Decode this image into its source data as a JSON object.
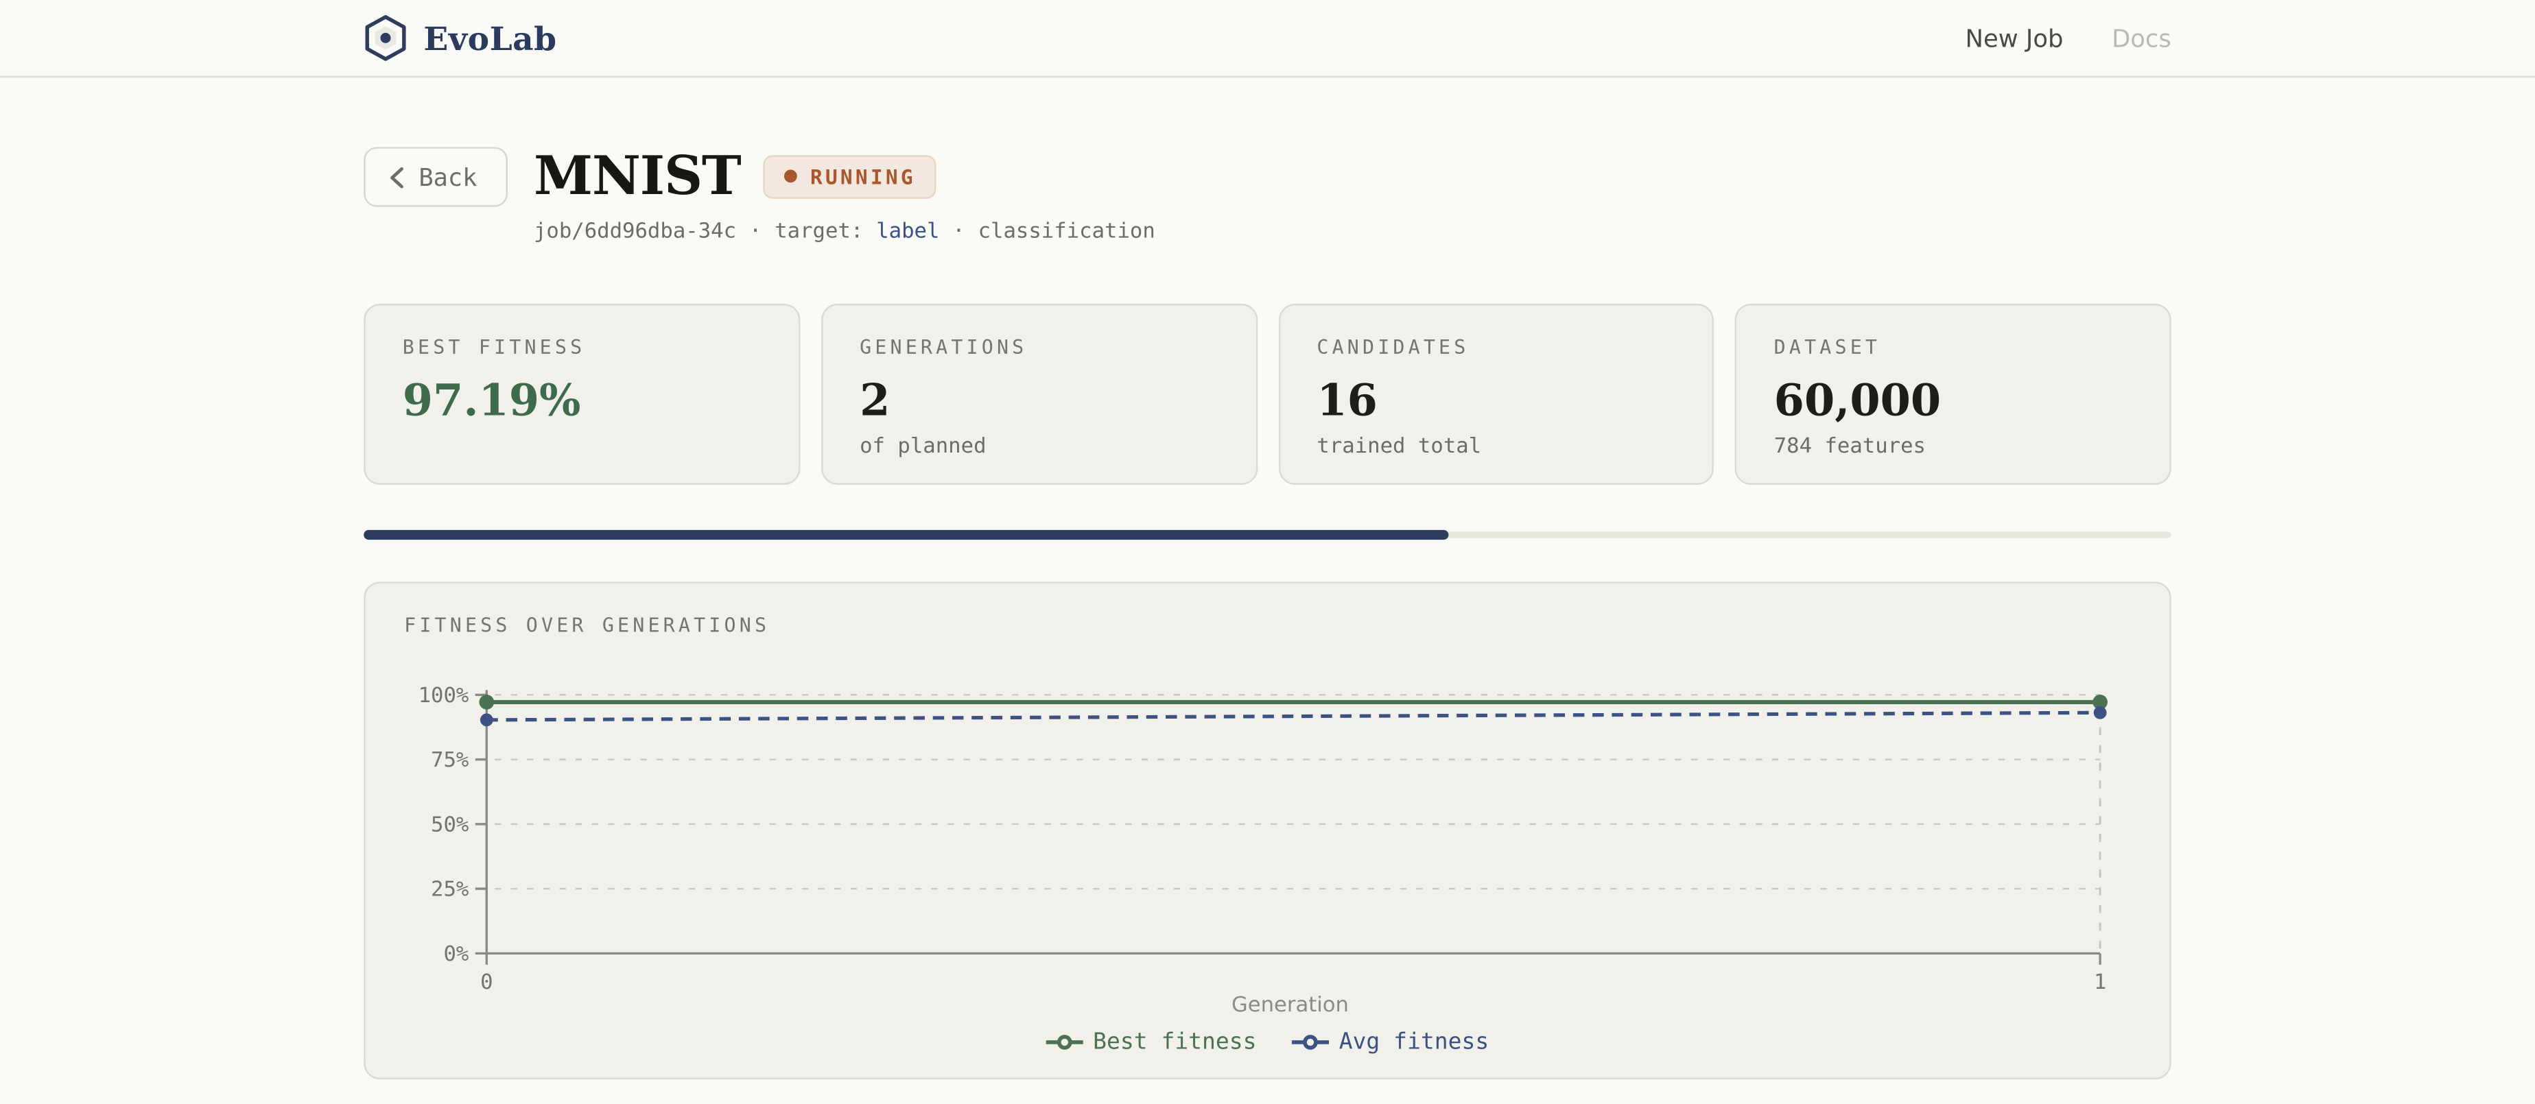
{
  "header": {
    "brand": "EvoLab",
    "nav": [
      {
        "label": "New Job",
        "active": true
      },
      {
        "label": "Docs",
        "active": false
      }
    ]
  },
  "job": {
    "back_label": "Back",
    "title": "MNIST",
    "status": "RUNNING",
    "meta": {
      "id": "job/6dd96dba-34c",
      "sep1": "·",
      "target_label": "target:",
      "target_value": "label",
      "sep2": "·",
      "task": "classification"
    }
  },
  "stats": [
    {
      "label": "BEST FITNESS",
      "value": "97.19%",
      "sub": "",
      "accent": "green"
    },
    {
      "label": "GENERATIONS",
      "value": "2",
      "sub": "of planned",
      "accent": ""
    },
    {
      "label": "CANDIDATES",
      "value": "16",
      "sub": "trained total",
      "accent": ""
    },
    {
      "label": "DATASET",
      "value": "60,000",
      "sub": "784 features",
      "accent": ""
    }
  ],
  "progress": {
    "percent": 60
  },
  "chart_data": {
    "type": "line",
    "title": "FITNESS OVER GENERATIONS",
    "x": [
      0,
      1
    ],
    "series": [
      {
        "name": "Best fitness",
        "values": [
          97.19,
          97.19
        ],
        "color": "#4a7253",
        "style": "solid"
      },
      {
        "name": "Avg fitness",
        "values": [
          90.3,
          93.1
        ],
        "color": "#3c5282",
        "style": "dashed"
      }
    ],
    "xlabel": "Generation",
    "ylim": [
      0,
      100
    ],
    "yticks": [
      0,
      25,
      50,
      75,
      100
    ],
    "ytick_format": "percent",
    "grid": true,
    "legend_position": "bottom"
  },
  "colors": {
    "brand_navy": "#2e3c5e",
    "accent_green": "#4a7253",
    "status_rust": "#a8572e",
    "card_bg": "#f1f0ea",
    "page_bg": "#fafaf7"
  }
}
